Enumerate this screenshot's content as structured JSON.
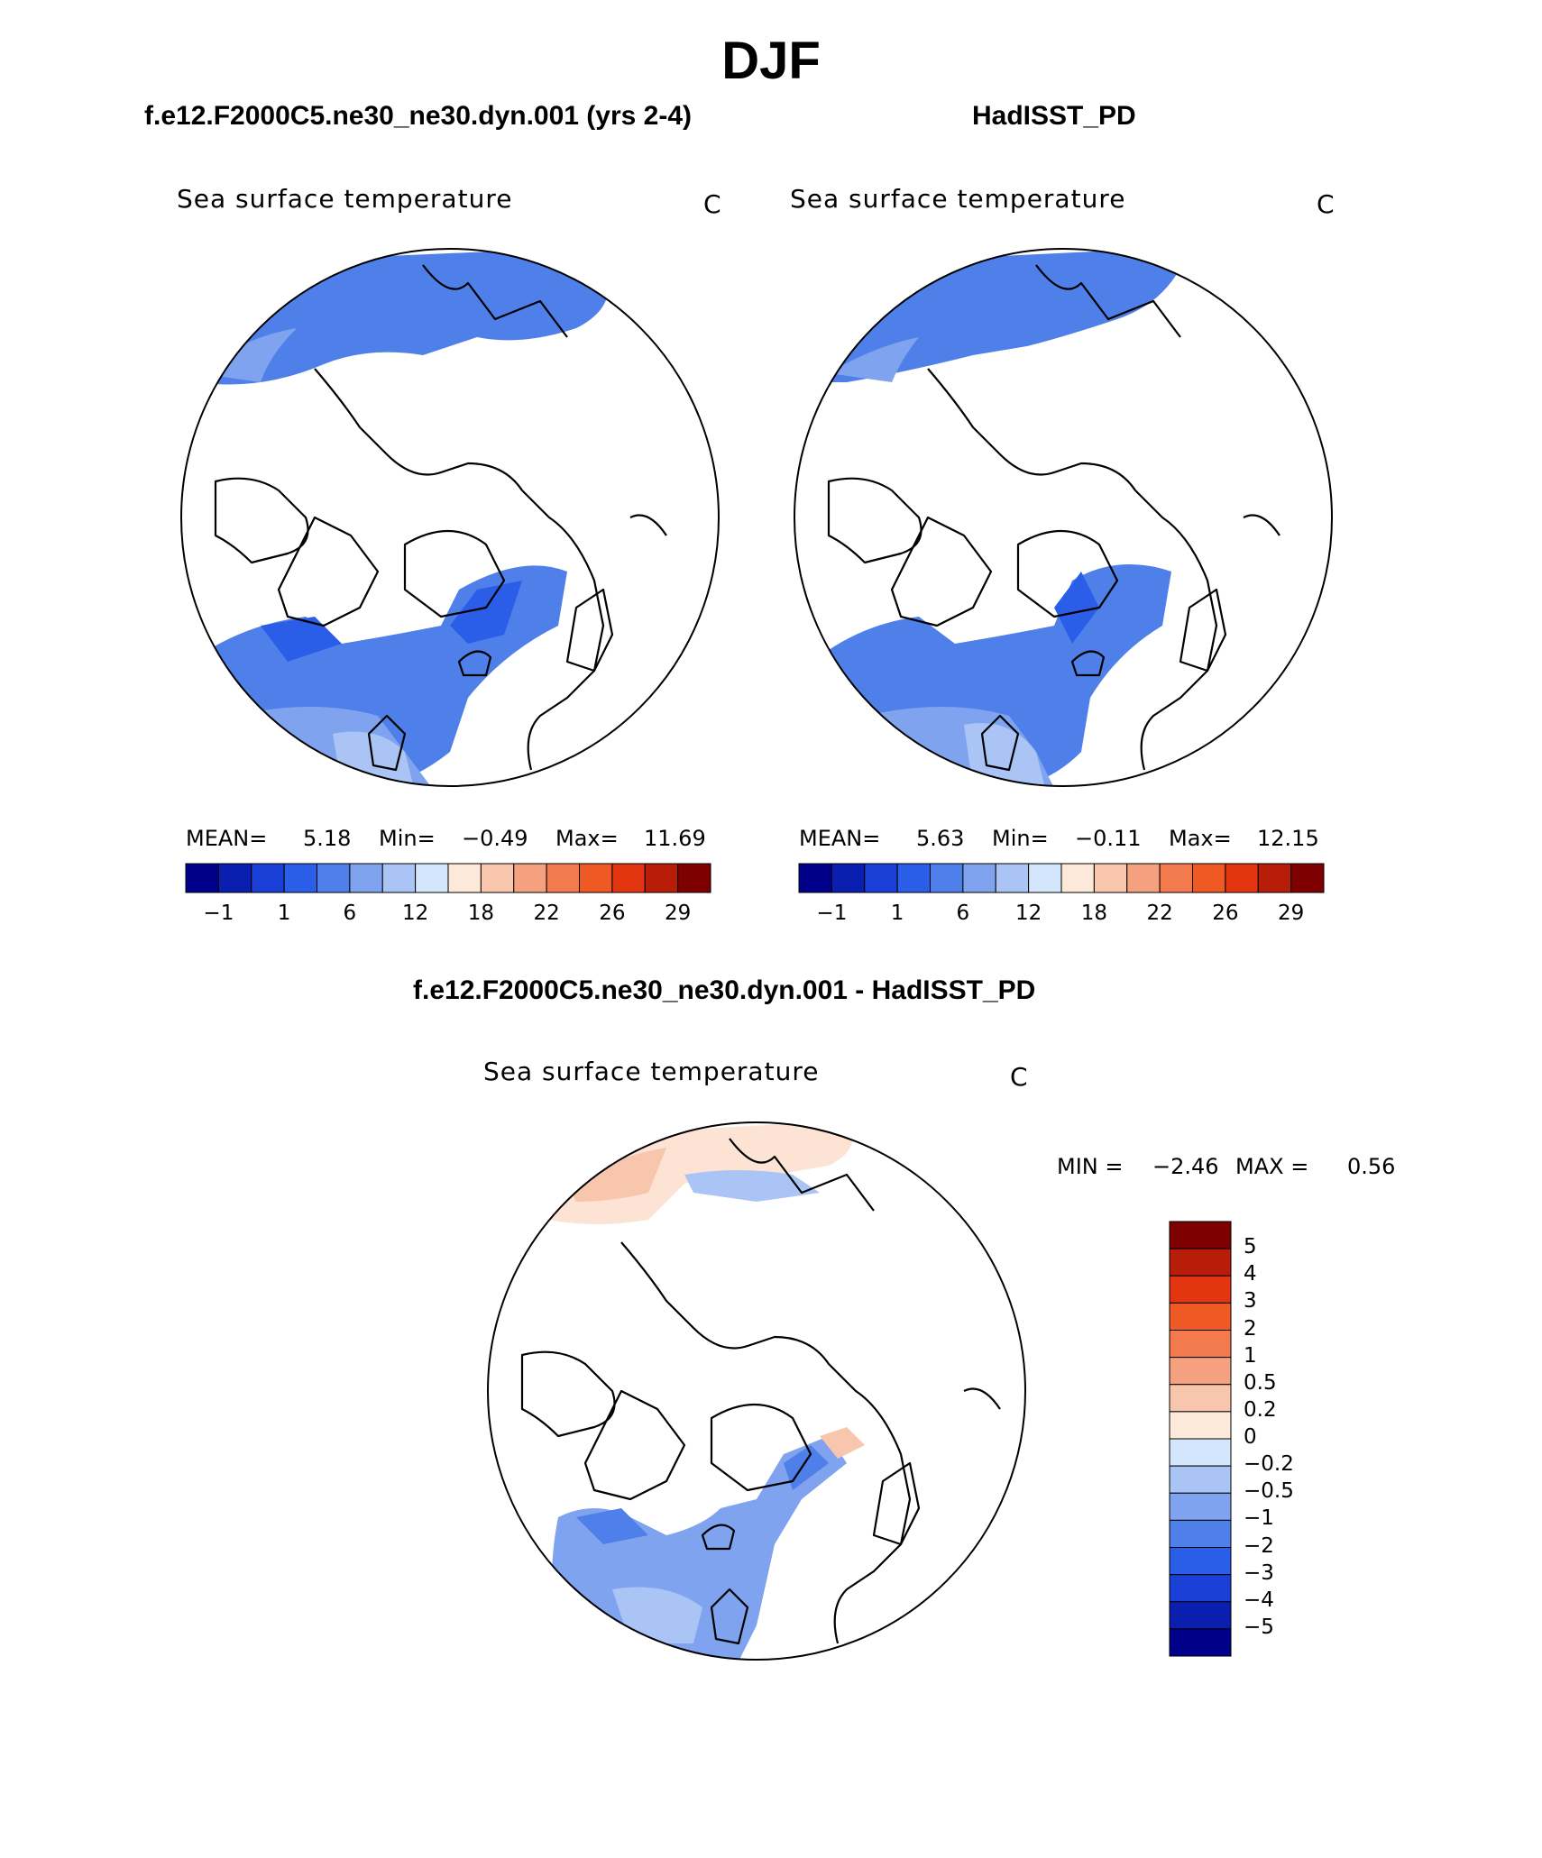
{
  "figure": {
    "season": "DJF",
    "diff_title": "f.e12.F2000C5.ne30_ne30.dyn.001 - HadISST_PD"
  },
  "panels": [
    {
      "title": "f.e12.F2000C5.ne30_ne30.dyn.001 (yrs 2-4)",
      "variable": "Sea surface temperature",
      "units": "C",
      "mean_label": "MEAN=",
      "mean": "5.18",
      "min_label": "Min=",
      "min": "−0.49",
      "max_label": "Max=",
      "max": "11.69"
    },
    {
      "title": "HadISST_PD",
      "variable": "Sea surface temperature",
      "units": "C",
      "mean_label": "MEAN=",
      "mean": "5.63",
      "min_label": "Min=",
      "min": "−0.11",
      "max_label": "Max=",
      "max": "12.15"
    }
  ],
  "diff_panel": {
    "variable": "Sea surface temperature",
    "units": "C",
    "min_label": "MIN =",
    "min": "−2.46",
    "max_label": "MAX =",
    "max": "0.56"
  },
  "abs_colorbar": {
    "colors": [
      "#00008b",
      "#0a1fb0",
      "#1a3fd6",
      "#2b5ee8",
      "#4f7fe8",
      "#7fa3ee",
      "#a9c4f5",
      "#d4e6fb",
      "#fde9d9",
      "#f8c6ad",
      "#f5a07e",
      "#f37a4d",
      "#ef5a24",
      "#e33510",
      "#b81d0a",
      "#7f0000"
    ],
    "ticks": [
      "−1",
      "1",
      "6",
      "12",
      "18",
      "22",
      "26",
      "29"
    ]
  },
  "diff_colorbar": {
    "colors": [
      "#00008b",
      "#0a1fb0",
      "#1a3fd6",
      "#2b5ee8",
      "#4f7fe8",
      "#7fa3ee",
      "#a9c4f5",
      "#d4e6fb",
      "#fde9d9",
      "#f8c6ad",
      "#f5a07e",
      "#f37a4d",
      "#ef5a24",
      "#e33510",
      "#b81d0a",
      "#7f0000"
    ],
    "ticks": [
      "5",
      "4",
      "3",
      "2",
      "1",
      "0.5",
      "0.2",
      "0",
      "−0.2",
      "−0.5",
      "−1",
      "−2",
      "−3",
      "−4",
      "−5"
    ]
  },
  "colors": {
    "ocean_deep": "#2b5ee8",
    "ocean_mid": "#4f7fe8",
    "ocean_light": "#7fa3ee",
    "ocean_pale": "#a9c4f5",
    "warm_pale": "#fde3d4",
    "warm_light": "#f8c6ad"
  }
}
